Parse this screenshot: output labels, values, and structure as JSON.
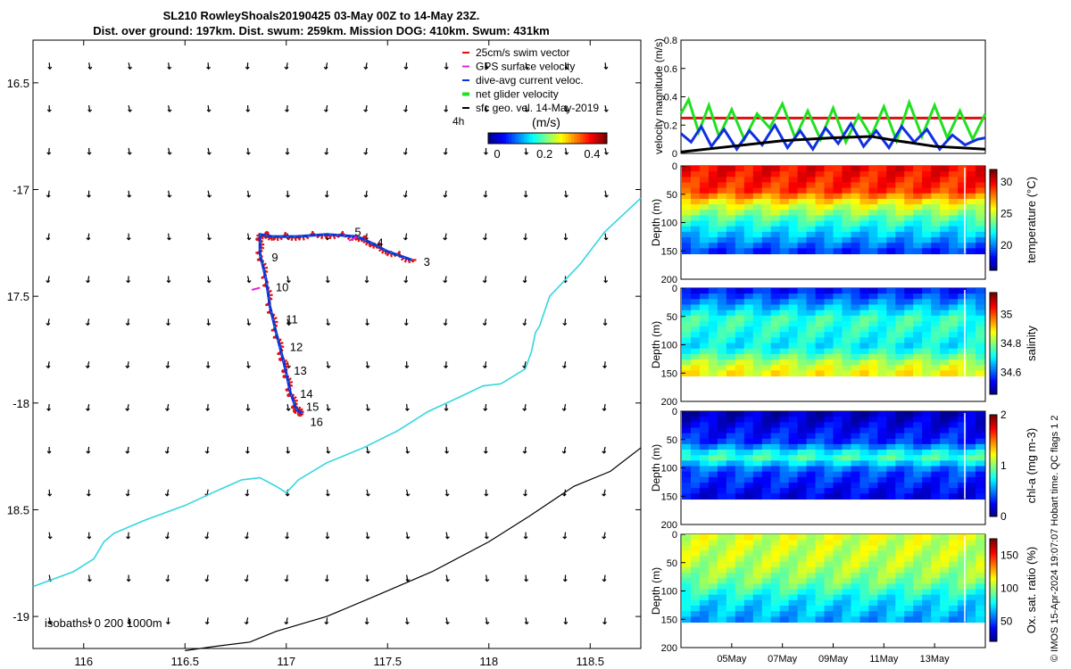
{
  "title_line1": "SL210 RowleyShoals20190425 03-May 00Z to 14-May 23Z.",
  "title_line2": "Dist. over ground: 197km. Dist. swum: 259km. Mission DOG: 410km. Swum: 431km",
  "footer_credit": "© IMOS 15-Apr-2024 19:07:07 Hobart time. QC flags 1  2",
  "colors": {
    "coast": "#33d6e0",
    "isobath": "#000000",
    "swim_vector": "#e01010",
    "gps_velocity": "#e020e0",
    "dive_current": "#1030e0",
    "net_velocity": "#20e020",
    "geo_velocity": "#000000"
  },
  "chart_data": [
    {
      "type": "map",
      "name": "glider-track-map",
      "xlim": [
        115.75,
        118.75
      ],
      "ylim": [
        -19.15,
        -16.3
      ],
      "x_ticks": [
        116,
        116.5,
        117,
        117.5,
        118,
        118.5
      ],
      "x_tick_labels": [
        "116",
        "116.5",
        "117",
        "117.5",
        "118",
        "118.5"
      ],
      "y_ticks": [
        -16.5,
        -17,
        -17.5,
        -18,
        -18.5,
        -19
      ],
      "y_tick_labels": [
        "16.5",
        "-17",
        "17.5",
        "-18",
        "18.5",
        "-19"
      ],
      "legend": [
        {
          "label": "25cm/s swim vector",
          "color": "#e01010"
        },
        {
          "label": "GPS surface velocity",
          "color": "#e020e0"
        },
        {
          "label": "dive-avg current veloc.",
          "color": "#1030e0"
        },
        {
          "label": "net glider velocity",
          "color": "#20e020"
        },
        {
          "label": "sfc geo. vel. 14-May-2019",
          "color": "#000000"
        }
      ],
      "legend_placement": "top-right",
      "colorbar": {
        "label": "(m/s)",
        "annotation": "4h",
        "ticks": [
          "0",
          "0.2",
          "0.4"
        ],
        "range": [
          0,
          0.5
        ]
      },
      "isobath_label": "isobaths: 0   200  1000m",
      "track": [
        [
          117.62,
          -17.33
        ],
        [
          117.5,
          -17.29
        ],
        [
          117.42,
          -17.25
        ],
        [
          117.35,
          -17.22
        ],
        [
          117.2,
          -17.21
        ],
        [
          117.05,
          -17.22
        ],
        [
          116.93,
          -17.22
        ],
        [
          116.87,
          -17.21
        ],
        [
          116.87,
          -17.3
        ],
        [
          116.9,
          -17.42
        ],
        [
          116.92,
          -17.55
        ],
        [
          116.95,
          -17.67
        ],
        [
          116.98,
          -17.78
        ],
        [
          117.0,
          -17.86
        ],
        [
          117.02,
          -17.95
        ],
        [
          117.05,
          -18.03
        ],
        [
          117.08,
          -18.05
        ]
      ],
      "day_labels": [
        {
          "label": "3",
          "lon": 117.66,
          "lat": -17.34
        },
        {
          "label": "4",
          "lon": 117.43,
          "lat": -17.25
        },
        {
          "label": "5",
          "lon": 117.32,
          "lat": -17.2
        },
        {
          "label": "9",
          "lon": 116.91,
          "lat": -17.32
        },
        {
          "label": "10",
          "lon": 116.93,
          "lat": -17.46
        },
        {
          "label": "11",
          "lon": 116.98,
          "lat": -17.61
        },
        {
          "label": "12",
          "lon": 117.0,
          "lat": -17.74
        },
        {
          "label": "13",
          "lon": 117.02,
          "lat": -17.85
        },
        {
          "label": "14",
          "lon": 117.05,
          "lat": -17.96
        },
        {
          "label": "15",
          "lon": 117.08,
          "lat": -18.02
        },
        {
          "label": "16",
          "lon": 117.1,
          "lat": -18.09
        }
      ],
      "coastline_0m": [
        [
          115.75,
          -18.86
        ],
        [
          115.95,
          -18.79
        ],
        [
          116.05,
          -18.73
        ],
        [
          116.1,
          -18.65
        ],
        [
          116.15,
          -18.61
        ],
        [
          116.3,
          -18.55
        ],
        [
          116.5,
          -18.48
        ],
        [
          116.66,
          -18.41
        ],
        [
          116.78,
          -18.36
        ],
        [
          116.87,
          -18.35
        ],
        [
          116.95,
          -18.39
        ],
        [
          117.0,
          -18.42
        ],
        [
          117.06,
          -18.36
        ],
        [
          117.2,
          -18.28
        ],
        [
          117.38,
          -18.21
        ],
        [
          117.55,
          -18.13
        ],
        [
          117.7,
          -18.04
        ],
        [
          117.86,
          -17.97
        ],
        [
          117.97,
          -17.92
        ],
        [
          118.06,
          -17.91
        ],
        [
          118.18,
          -17.84
        ],
        [
          118.21,
          -17.76
        ],
        [
          118.23,
          -17.67
        ],
        [
          118.25,
          -17.64
        ],
        [
          118.3,
          -17.5
        ],
        [
          118.45,
          -17.35
        ],
        [
          118.57,
          -17.2
        ],
        [
          118.75,
          -17.04
        ]
      ],
      "isobath_1000m": [
        [
          116.5,
          -19.16
        ],
        [
          116.65,
          -19.14
        ],
        [
          116.82,
          -19.12
        ],
        [
          116.95,
          -19.07
        ],
        [
          117.2,
          -19.0
        ],
        [
          117.45,
          -18.9
        ],
        [
          117.72,
          -18.79
        ],
        [
          118.0,
          -18.65
        ],
        [
          118.2,
          -18.53
        ],
        [
          118.42,
          -18.39
        ],
        [
          118.6,
          -18.32
        ],
        [
          118.75,
          -18.21
        ]
      ]
    },
    {
      "type": "line",
      "name": "velocity-panel",
      "ylabel": "velocity magnitude (m/s)",
      "ylim": [
        0,
        0.8
      ],
      "y_ticks": [
        "0",
        "0.2",
        "0.4",
        "0.6",
        "0.8"
      ],
      "xlim_days": [
        3,
        15
      ],
      "series": [
        {
          "name": "25cm/s swim vector",
          "color": "#e01010",
          "values": [
            [
              3,
              0.25
            ],
            [
              15,
              0.25
            ]
          ]
        },
        {
          "name": "net glider velocity",
          "color": "#20e020",
          "values": [
            [
              3,
              0.28
            ],
            [
              3.3,
              0.38
            ],
            [
              3.7,
              0.15
            ],
            [
              4.1,
              0.34
            ],
            [
              4.5,
              0.12
            ],
            [
              5,
              0.31
            ],
            [
              5.5,
              0.1
            ],
            [
              6,
              0.28
            ],
            [
              6.5,
              0.18
            ],
            [
              7,
              0.35
            ],
            [
              7.5,
              0.11
            ],
            [
              8,
              0.3
            ],
            [
              8.5,
              0.1
            ],
            [
              9,
              0.32
            ],
            [
              9.5,
              0.08
            ],
            [
              10,
              0.27
            ],
            [
              10.5,
              0.12
            ],
            [
              11,
              0.33
            ],
            [
              11.5,
              0.09
            ],
            [
              12,
              0.36
            ],
            [
              12.5,
              0.12
            ],
            [
              13,
              0.34
            ],
            [
              13.5,
              0.11
            ],
            [
              14,
              0.3
            ],
            [
              14.5,
              0.1
            ],
            [
              15,
              0.28
            ]
          ]
        },
        {
          "name": "dive-avg current veloc.",
          "color": "#1030e0",
          "values": [
            [
              3,
              0.14
            ],
            [
              3.4,
              0.08
            ],
            [
              3.8,
              0.19
            ],
            [
              4.2,
              0.05
            ],
            [
              4.7,
              0.17
            ],
            [
              5.2,
              0.03
            ],
            [
              5.7,
              0.16
            ],
            [
              6.2,
              0.06
            ],
            [
              6.7,
              0.2
            ],
            [
              7.2,
              0.04
            ],
            [
              7.7,
              0.16
            ],
            [
              8.2,
              0.03
            ],
            [
              8.7,
              0.18
            ],
            [
              9.2,
              0.07
            ],
            [
              9.7,
              0.21
            ],
            [
              10.2,
              0.05
            ],
            [
              10.7,
              0.16
            ],
            [
              11.2,
              0.04
            ],
            [
              11.7,
              0.19
            ],
            [
              12.2,
              0.08
            ],
            [
              12.7,
              0.17
            ],
            [
              13.2,
              0.03
            ],
            [
              13.7,
              0.13
            ],
            [
              14.2,
              0.06
            ],
            [
              14.7,
              0.1
            ],
            [
              15,
              0.11
            ]
          ]
        },
        {
          "name": "sfc geo. vel.",
          "color": "#000000",
          "values": [
            [
              3,
              0.01
            ],
            [
              5,
              0.05
            ],
            [
              7,
              0.09
            ],
            [
              9,
              0.11
            ],
            [
              10.5,
              0.12
            ],
            [
              11.5,
              0.09
            ],
            [
              13,
              0.05
            ],
            [
              15,
              0.03
            ]
          ]
        }
      ]
    },
    {
      "type": "heatmap",
      "name": "temperature-section",
      "ylabel": "Depth (m)",
      "y_ticks": [
        "0",
        "50",
        "100",
        "150",
        "200"
      ],
      "colorbar_label": "temperature (°C)",
      "colorbar_ticks": [
        "20",
        "25",
        "30"
      ],
      "cbar_range": [
        16,
        32
      ],
      "bands": [
        {
          "depth": 0,
          "value": 30
        },
        {
          "depth": 40,
          "value": 29
        },
        {
          "depth": 60,
          "value": 26
        },
        {
          "depth": 90,
          "value": 23
        },
        {
          "depth": 130,
          "value": 20
        },
        {
          "depth": 155,
          "value": 18
        }
      ]
    },
    {
      "type": "heatmap",
      "name": "salinity-section",
      "ylabel": "Depth (m)",
      "y_ticks": [
        "0",
        "50",
        "100",
        "150",
        "200"
      ],
      "colorbar_label": "salinity",
      "colorbar_ticks": [
        "34.6",
        "34.8",
        "35"
      ],
      "cbar_range": [
        34.45,
        35.15
      ],
      "bands": [
        {
          "depth": 0,
          "value": 34.55
        },
        {
          "depth": 50,
          "value": 34.75
        },
        {
          "depth": 100,
          "value": 34.7
        },
        {
          "depth": 130,
          "value": 34.85
        },
        {
          "depth": 155,
          "value": 34.9
        }
      ]
    },
    {
      "type": "heatmap",
      "name": "chlorophyll-section",
      "ylabel": "Depth (m)",
      "y_ticks": [
        "0",
        "50",
        "100",
        "150",
        "200"
      ],
      "colorbar_label": "chl-a (mg m-3)",
      "colorbar_ticks": [
        "0",
        "1",
        "2"
      ],
      "cbar_range": [
        0,
        2
      ],
      "bands": [
        {
          "depth": 0,
          "value": 0.1
        },
        {
          "depth": 50,
          "value": 0.35
        },
        {
          "depth": 75,
          "value": 0.9
        },
        {
          "depth": 100,
          "value": 0.4
        },
        {
          "depth": 155,
          "value": 0.15
        }
      ]
    },
    {
      "type": "heatmap",
      "name": "oxygen-section",
      "ylabel": "Depth (m)",
      "y_ticks": [
        "0",
        "50",
        "100",
        "150",
        "200"
      ],
      "x_tick_labels": [
        "05May",
        "07May",
        "09May",
        "11May",
        "13May"
      ],
      "x_ticks_days": [
        5,
        7,
        9,
        11,
        13
      ],
      "colorbar_label": "Ox. sat. ratio (%)",
      "colorbar_ticks": [
        "50",
        "100",
        "150"
      ],
      "cbar_range": [
        20,
        175
      ],
      "bands": [
        {
          "depth": 0,
          "value": 110
        },
        {
          "depth": 50,
          "value": 105
        },
        {
          "depth": 80,
          "value": 95
        },
        {
          "depth": 110,
          "value": 75
        },
        {
          "depth": 155,
          "value": 60
        }
      ]
    }
  ]
}
